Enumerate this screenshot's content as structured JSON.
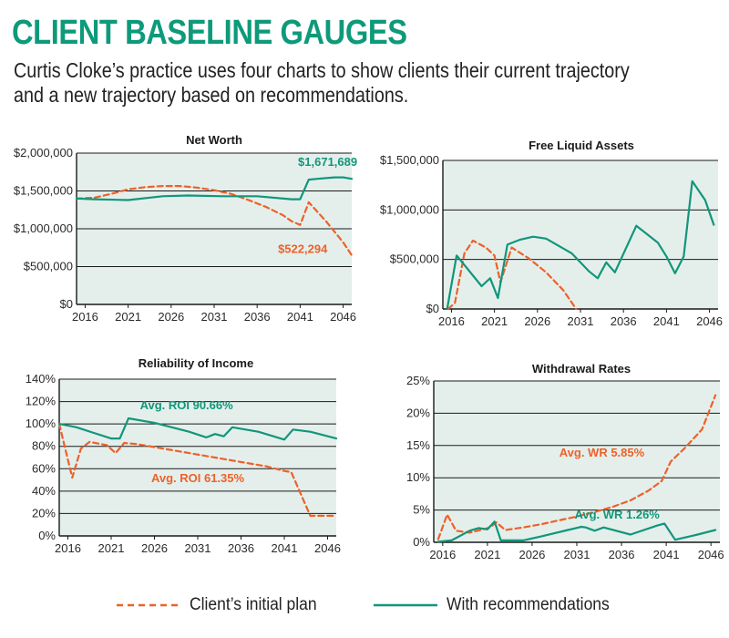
{
  "page": {
    "title": "CLIENT BASELINE GAUGES",
    "subtitle_line1": "Curtis Cloke’s practice uses four charts to show clients their current trajectory",
    "subtitle_line2": "and a new trajectory based on recommendations."
  },
  "colors": {
    "initial": "#ee6128",
    "recommended": "#11967a",
    "plot_bg": "#e4efec",
    "title": "#0e9a7a"
  },
  "legend": {
    "initial_label": "Client’s initial plan",
    "recommended_label": "With recommendations"
  },
  "chart_data": [
    {
      "id": "net-worth",
      "type": "line",
      "title": "Net Worth",
      "xlim": [
        2015,
        2047
      ],
      "ylim": [
        0,
        2000000
      ],
      "yticks": [
        0,
        500000,
        1000000,
        1500000,
        2000000
      ],
      "ytick_labels": [
        "$0",
        "$500,000",
        "$1,000,000",
        "$1,500,000",
        "$2,000,000"
      ],
      "xticks": [
        2016,
        2021,
        2026,
        2031,
        2036,
        2041,
        2046
      ],
      "xtick_labels": [
        "2016",
        "2021",
        "2026",
        "2031",
        "2036",
        "2041",
        "2046"
      ],
      "series": [
        {
          "name": "Client’s initial plan",
          "key": "initial",
          "dashed": true,
          "x": [
            2015,
            2017,
            2019,
            2021,
            2023,
            2025,
            2027,
            2029,
            2031,
            2033,
            2035,
            2037,
            2039,
            2040,
            2041,
            2042,
            2044,
            2046,
            2047
          ],
          "y": [
            1400000,
            1410000,
            1460000,
            1520000,
            1550000,
            1565000,
            1565000,
            1545000,
            1510000,
            1460000,
            1380000,
            1290000,
            1180000,
            1100000,
            1050000,
            1350000,
            1100000,
            820000,
            650000
          ]
        },
        {
          "name": "With recommendations",
          "key": "recommended",
          "dashed": false,
          "x": [
            2015,
            2017,
            2021,
            2025,
            2028,
            2032,
            2036,
            2040,
            2041,
            2042,
            2043,
            2045,
            2046,
            2047
          ],
          "y": [
            1400000,
            1390000,
            1380000,
            1430000,
            1440000,
            1430000,
            1430000,
            1390000,
            1390000,
            1650000,
            1660000,
            1680000,
            1680000,
            1660000
          ]
        }
      ],
      "annotations": [
        {
          "text": "$1,671,689",
          "key": "recommended",
          "x": 2044.2,
          "y": 1830000
        },
        {
          "text": "$522,294",
          "key": "initial",
          "x": 2041.3,
          "y": 680000
        }
      ]
    },
    {
      "id": "free-liquid-assets",
      "type": "line",
      "title": "Free Liquid Assets",
      "xlim": [
        2015,
        2047
      ],
      "ylim": [
        0,
        1500000
      ],
      "yticks": [
        0,
        500000,
        1000000,
        1500000
      ],
      "ytick_labels": [
        "$0",
        "$500,000",
        "$1,000,000",
        "$1,500,000"
      ],
      "xticks": [
        2016,
        2021,
        2026,
        2031,
        2036,
        2041,
        2046
      ],
      "xtick_labels": [
        "2016",
        "2021",
        "2026",
        "2031",
        "2036",
        "2041",
        "2046"
      ],
      "series": [
        {
          "name": "Client’s initial plan",
          "key": "initial",
          "dashed": true,
          "x": [
            2015.6,
            2016.4,
            2017.5,
            2018.5,
            2020,
            2021,
            2021.7,
            2023,
            2025,
            2027,
            2029,
            2030.5
          ],
          "y": [
            0,
            60000,
            560000,
            690000,
            620000,
            540000,
            270000,
            620000,
            510000,
            370000,
            190000,
            0
          ]
        },
        {
          "name": "With recommendations",
          "key": "recommended",
          "dashed": false,
          "x": [
            2015.5,
            2016.6,
            2019.5,
            2020.5,
            2021.4,
            2022.5,
            2024,
            2025.5,
            2027,
            2030,
            2032,
            2033,
            2034,
            2035,
            2037.5,
            2040,
            2041,
            2042,
            2043,
            2044,
            2045.5,
            2046.5
          ],
          "y": [
            0,
            540000,
            230000,
            310000,
            110000,
            650000,
            700000,
            730000,
            710000,
            560000,
            380000,
            310000,
            470000,
            370000,
            840000,
            670000,
            530000,
            360000,
            530000,
            1290000,
            1100000,
            850000
          ]
        }
      ],
      "annotations": []
    },
    {
      "id": "reliability-of-income",
      "type": "line",
      "title": "Reliability of Income",
      "xlim": [
        2015,
        2047
      ],
      "ylim": [
        0,
        140
      ],
      "yticks": [
        0,
        20,
        40,
        60,
        80,
        100,
        120,
        140
      ],
      "ytick_labels": [
        "0%",
        "20%",
        "40%",
        "60%",
        "80%",
        "100%",
        "120%",
        "140%"
      ],
      "xticks": [
        2016,
        2021,
        2026,
        2031,
        2036,
        2041,
        2046
      ],
      "xtick_labels": [
        "2016",
        "2021",
        "2026",
        "2031",
        "2036",
        "2041",
        "2046"
      ],
      "series": [
        {
          "name": "Client’s initial plan",
          "key": "initial",
          "dashed": true,
          "x": [
            2015,
            2016.5,
            2017.5,
            2018.5,
            2020.5,
            2021.5,
            2022.5,
            2024,
            2027,
            2030,
            2033,
            2036,
            2039,
            2041,
            2041.8,
            2044,
            2047
          ],
          "y": [
            100,
            52,
            78,
            84,
            81,
            74,
            83,
            82,
            78,
            74,
            70,
            66,
            62,
            58,
            57,
            18,
            18
          ]
        },
        {
          "name": "With recommendations",
          "key": "recommended",
          "dashed": false,
          "x": [
            2015,
            2017,
            2019,
            2021,
            2022,
            2023,
            2026,
            2030,
            2032,
            2033,
            2034,
            2035,
            2038,
            2041,
            2042,
            2044,
            2047
          ],
          "y": [
            100,
            97,
            92,
            87,
            87,
            105,
            101,
            93,
            88,
            91,
            89,
            97,
            93,
            86,
            95,
            93,
            87
          ]
        }
      ],
      "annotations": [
        {
          "text": "Avg. ROI 90.66%",
          "key": "recommended",
          "x": 2029.7,
          "y": 113
        },
        {
          "text": "Avg. ROI 61.35%",
          "key": "initial",
          "x": 2031,
          "y": 48
        }
      ]
    },
    {
      "id": "withdrawal-rates",
      "type": "line",
      "title": "Withdrawal Rates",
      "xlim": [
        2015,
        2047
      ],
      "ylim": [
        0,
        25
      ],
      "yticks": [
        0,
        5,
        10,
        15,
        20,
        25
      ],
      "ytick_labels": [
        "0%",
        "5%",
        "10%",
        "15%",
        "20%",
        "25%"
      ],
      "xticks": [
        2016,
        2021,
        2026,
        2031,
        2036,
        2041,
        2046
      ],
      "xtick_labels": [
        "2016",
        "2021",
        "2026",
        "2031",
        "2036",
        "2041",
        "2046"
      ],
      "series": [
        {
          "name": "Client’s initial plan",
          "key": "initial",
          "dashed": true,
          "x": [
            2015.5,
            2016.5,
            2017.5,
            2019,
            2020.5,
            2021.3,
            2022,
            2023,
            2025,
            2027,
            2029,
            2031,
            2033,
            2035,
            2037,
            2039,
            2040.5,
            2041.5,
            2043,
            2045,
            2046.5
          ],
          "y": [
            0.5,
            4.3,
            1.8,
            1.5,
            2.0,
            2.3,
            3.1,
            1.9,
            2.3,
            2.8,
            3.4,
            4.0,
            4.7,
            5.5,
            6.5,
            8.0,
            9.5,
            12.5,
            14.5,
            17.5,
            22.8
          ]
        },
        {
          "name": "With recommendations",
          "key": "recommended",
          "dashed": false,
          "x": [
            2015.5,
            2017,
            2019,
            2020,
            2021,
            2021.8,
            2022.5,
            2025,
            2027,
            2030,
            2031.5,
            2032,
            2033,
            2034,
            2037,
            2040,
            2040.8,
            2042,
            2044.5,
            2046.5
          ],
          "y": [
            0.1,
            0.3,
            1.8,
            2.2,
            2.0,
            3.2,
            0.3,
            0.3,
            0.9,
            1.9,
            2.4,
            2.3,
            1.8,
            2.3,
            1.2,
            2.6,
            2.9,
            0.4,
            1.2,
            1.9
          ]
        }
      ],
      "annotations": [
        {
          "text": "Avg. WR  5.85%",
          "key": "initial",
          "x": 2033.8,
          "y": 13.3
        },
        {
          "text": "Avg. WR  1.26%",
          "key": "recommended",
          "x": 2035.5,
          "y": 3.7
        }
      ]
    }
  ]
}
